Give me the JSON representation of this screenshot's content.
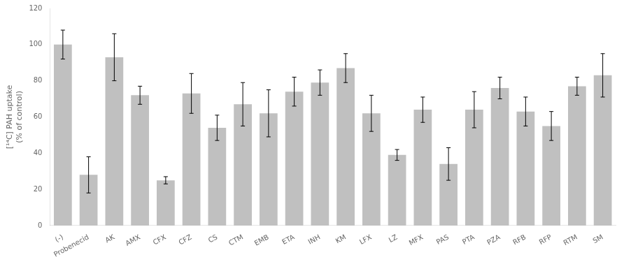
{
  "chart_data": {
    "type": "bar",
    "categories": [
      "(-)",
      "Probenecid",
      "AK",
      "AMX",
      "CFX",
      "CFZ",
      "CS",
      "CTM",
      "EMB",
      "ETA",
      "INH",
      "KM",
      "LFX",
      "LZ",
      "MFX",
      "PAS",
      "PTA",
      "PZA",
      "RFB",
      "RFP",
      "RTM",
      "SM"
    ],
    "values": [
      100,
      28,
      93,
      72,
      25,
      73,
      54,
      67,
      62,
      74,
      79,
      87,
      62,
      39,
      64,
      34,
      64,
      76,
      63,
      55,
      77,
      83
    ],
    "errors": [
      8,
      10,
      13,
      5,
      2,
      11,
      7,
      12,
      13,
      8,
      7,
      8,
      10,
      3,
      7,
      9,
      10,
      6,
      8,
      8,
      5,
      12
    ],
    "color": "#c0c0c0",
    "ylabel": "[¹⁴C] PAH uptake\n(% of control)",
    "ylim": [
      0,
      120
    ],
    "yticks": [
      0,
      20,
      40,
      60,
      80,
      100,
      120
    ],
    "grid": false
  }
}
